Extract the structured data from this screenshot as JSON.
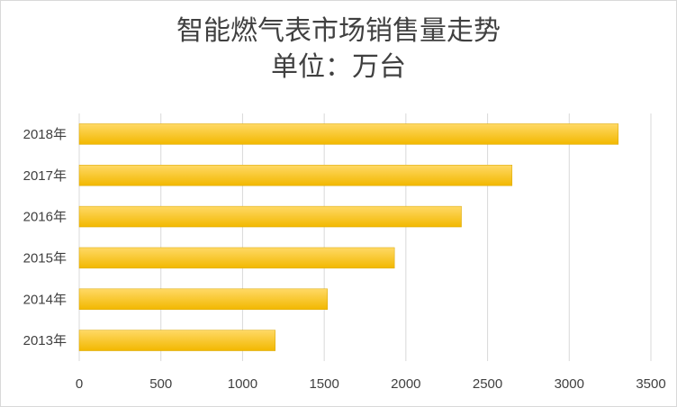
{
  "chart_data": {
    "type": "bar",
    "orientation": "horizontal",
    "title": "智能燃气表市场销售量走势",
    "subtitle": "单位：万台",
    "categories": [
      "2013年",
      "2014年",
      "2015年",
      "2016年",
      "2017年",
      "2018年"
    ],
    "values": [
      1200,
      1520,
      1930,
      2340,
      2650,
      3300
    ],
    "xlim": [
      0,
      3500
    ],
    "xticks": [
      "0",
      "500",
      "1000",
      "1500",
      "2000",
      "2500",
      "3000",
      "3500"
    ],
    "grid": true,
    "legend": "none",
    "colors": {
      "bar_top": "#ffd966",
      "bar_bottom": "#f2b800",
      "grid": "#d9d9d9",
      "text": "#404040"
    }
  }
}
